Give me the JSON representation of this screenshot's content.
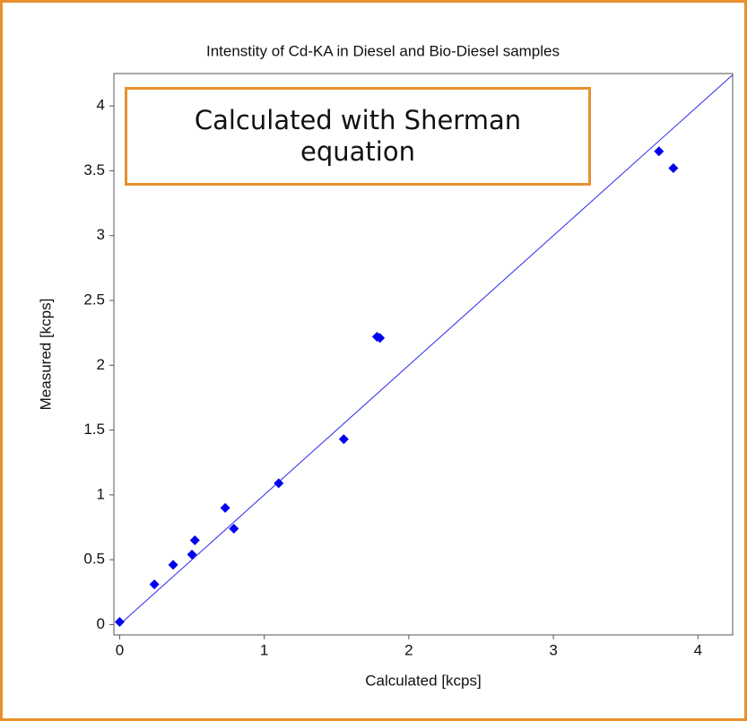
{
  "chart_data": {
    "type": "scatter",
    "title": "Intenstity of Cd-KA in Diesel and Bio-Diesel samples",
    "annotation": "Calculated with Sherman equation",
    "x_label": "Calculated [kcps]",
    "y_label": "Measured [kcps]",
    "x": [
      0,
      0.24,
      0.37,
      0.5,
      0.52,
      0.73,
      0.79,
      1.1,
      1.55,
      1.78,
      1.8,
      3.73,
      3.83
    ],
    "y": [
      0.02,
      0.31,
      0.46,
      0.54,
      0.65,
      0.9,
      0.74,
      1.09,
      1.43,
      2.22,
      2.21,
      3.65,
      3.52
    ],
    "color": "#0000ee",
    "line": {
      "x": [
        0,
        4.24
      ],
      "y": [
        0,
        4.24
      ],
      "color": "#2a2aee"
    },
    "xlim": [
      -0.04,
      4.24
    ],
    "ylim": [
      -0.08,
      4.25
    ],
    "xticks": [
      0,
      1,
      2,
      3,
      4
    ],
    "yticks": [
      0,
      0.5,
      1,
      1.5,
      2,
      2.5,
      3,
      3.5,
      4
    ]
  }
}
